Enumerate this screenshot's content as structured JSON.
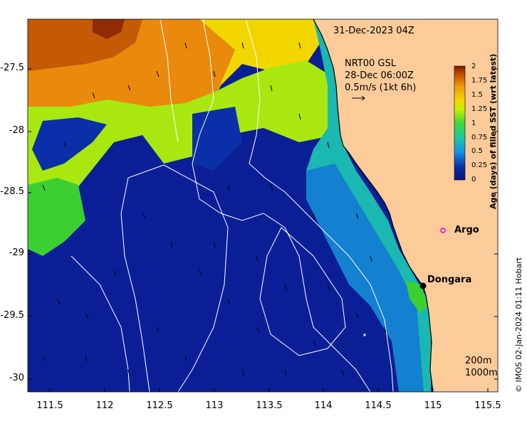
{
  "datetime": "31-Dec-2023 04Z",
  "current": {
    "source": "NRT00 GSL",
    "date": "28-Dec 06:00Z",
    "scale": "0.5m/s (1kt 6h)"
  },
  "colorbar": {
    "label": "Age (days) of filled SST (wrt latest)",
    "ticks": [
      "2",
      "1.75",
      "1.5",
      "1.25",
      "1",
      "0.75",
      "0.5",
      "0.25",
      "0"
    ],
    "colors": [
      "#7f1a00",
      "#c75000",
      "#ee9a10",
      "#f3d800",
      "#c6f000",
      "#3fd63a",
      "#18c9a0",
      "#1696e6",
      "#0a2fa8",
      "#0a1680"
    ]
  },
  "places": {
    "argo": "Argo",
    "dongara": "Dongara"
  },
  "contours": {
    "c200": "200m",
    "c1000": "1000m"
  },
  "credit": "© IMOS 02-Jan-2024 01:11 Hobart",
  "axes": {
    "y_ticks": [
      "-27.5",
      "-28",
      "-28.5",
      "-29",
      "-29.5",
      "-30"
    ],
    "x_ticks": [
      "111.5",
      "112",
      "112.5",
      "113",
      "113.5",
      "114",
      "114.5",
      "115",
      "115.5"
    ]
  },
  "colors": {
    "land": "#fbcb9a",
    "ocean_deep": "#0a1f96",
    "coast": "#000000"
  }
}
